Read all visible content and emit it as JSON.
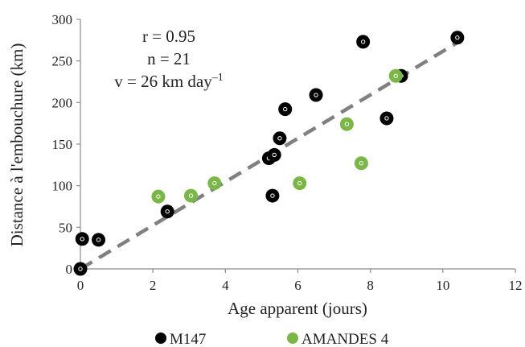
{
  "chart_data": {
    "type": "scatter",
    "title": "",
    "xlabel": "Age apparent (jours)",
    "ylabel": "Distance à l'embouchure (km)",
    "xlim": [
      0,
      12
    ],
    "ylim": [
      0,
      300
    ],
    "xticks": [
      "0",
      "2",
      "4",
      "6",
      "8",
      "10",
      "12"
    ],
    "yticks": [
      "0",
      "50",
      "100",
      "150",
      "200",
      "250",
      "300"
    ],
    "grid": false,
    "legend": "bottom",
    "stats": {
      "r": "r = 0.95",
      "n": "n = 21",
      "v": "v = 26 km day",
      "v_exp": "–1"
    },
    "series": [
      {
        "name": "M147",
        "color": "#000000",
        "points": [
          {
            "x": 0.0,
            "y": 0
          },
          {
            "x": 0.05,
            "y": 36
          },
          {
            "x": 0.5,
            "y": 35
          },
          {
            "x": 2.4,
            "y": 69
          },
          {
            "x": 5.2,
            "y": 133
          },
          {
            "x": 5.35,
            "y": 137
          },
          {
            "x": 5.5,
            "y": 157
          },
          {
            "x": 5.65,
            "y": 192
          },
          {
            "x": 5.3,
            "y": 88
          },
          {
            "x": 6.5,
            "y": 209
          },
          {
            "x": 7.8,
            "y": 273
          },
          {
            "x": 8.45,
            "y": 181
          },
          {
            "x": 8.85,
            "y": 232
          },
          {
            "x": 10.4,
            "y": 278
          }
        ]
      },
      {
        "name": "AMANDES 4",
        "color": "#7ab648",
        "points": [
          {
            "x": 2.15,
            "y": 87
          },
          {
            "x": 3.05,
            "y": 88
          },
          {
            "x": 3.7,
            "y": 103
          },
          {
            "x": 6.05,
            "y": 103
          },
          {
            "x": 7.35,
            "y": 174
          },
          {
            "x": 7.75,
            "y": 127
          },
          {
            "x": 8.7,
            "y": 232
          }
        ]
      }
    ],
    "trendline": {
      "color": "#808080",
      "from": {
        "x": 0,
        "y": 0
      },
      "to": {
        "x": 10.4,
        "y": 272
      }
    }
  }
}
